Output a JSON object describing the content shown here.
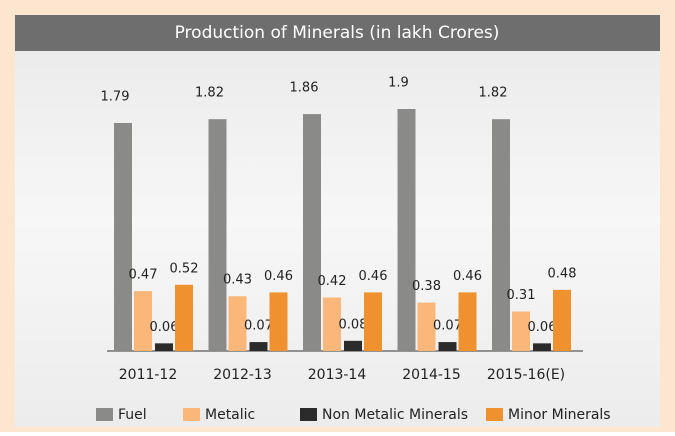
{
  "chart_data": {
    "type": "bar",
    "title": "Production of Minerals (in lakh Crores)",
    "categories": [
      "2011-12",
      "2012-13",
      "2013-14",
      "2014-15",
      "2015-16(E)"
    ],
    "series": [
      {
        "name": "Fuel",
        "color": "#8a8a88",
        "values": [
          1.79,
          1.82,
          1.86,
          1.9,
          1.82
        ]
      },
      {
        "name": "Metalic",
        "color": "#fbb77a",
        "values": [
          0.47,
          0.43,
          0.42,
          0.38,
          0.31
        ]
      },
      {
        "name": "Non Metalic Minerals",
        "color": "#2b2b2b",
        "values": [
          0.06,
          0.07,
          0.08,
          0.07,
          0.06
        ]
      },
      {
        "name": "Minor Minerals",
        "color": "#f0912f",
        "values": [
          0.52,
          0.46,
          0.46,
          0.46,
          0.48
        ]
      }
    ]
  }
}
